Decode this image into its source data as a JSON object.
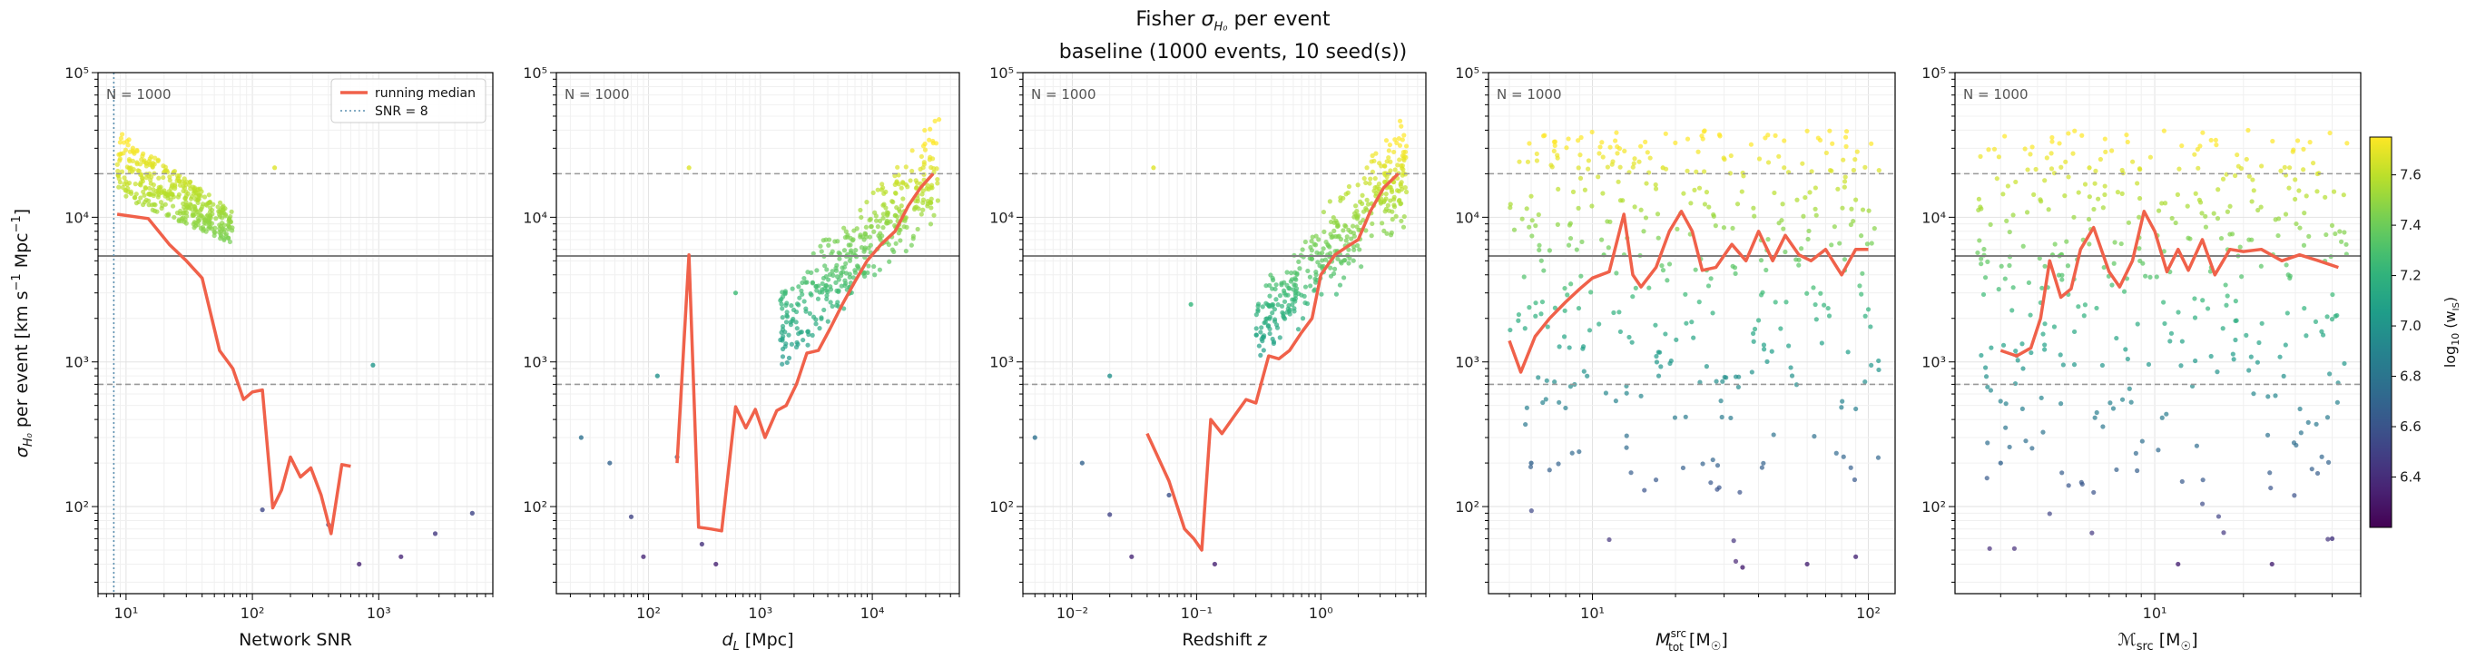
{
  "figure": {
    "title": "Fisher σH₀ per event",
    "title_main": "Fisher ",
    "title_sigma": "σ",
    "title_sub": "H₀",
    "title_tail": " per event",
    "subtitle": "baseline  (1000 events, 10 seed(s))"
  },
  "colors": {
    "median": "#f0614a",
    "snr_line": "#5b8fb0",
    "hline_solid": "#808080",
    "hline_dashed": "#999999",
    "grid": "#e6e6e6"
  },
  "colorbar": {
    "label": "log₁₀ (wᵢₛ)",
    "label_main": "log",
    "label_sub": "10",
    "label_arg": "(w",
    "label_argsub": "IS",
    "label_close": ")",
    "range": [
      6.2,
      7.75
    ],
    "ticks": [
      "6.4",
      "6.6",
      "6.8",
      "7.0",
      "7.2",
      "7.4",
      "7.6"
    ]
  },
  "chart_data": [
    {
      "type": "scatter",
      "id": "snr",
      "xscale": "log",
      "yscale": "log",
      "xlim": [
        6,
        8000
      ],
      "ylim": [
        25,
        100000
      ],
      "xlabel": "Network SNR",
      "ylabel": "σH₀ per event [km s⁻¹ Mpc⁻¹]",
      "ylabel_parts": {
        "sigma": "σ",
        "sub": "H₀",
        "rest": " per event [km s",
        "sup1": "−1",
        "mid": " Mpc",
        "sup2": "−1",
        "end": "]"
      },
      "xticks": [
        {
          "v": 10,
          "label": "10¹"
        },
        {
          "v": 100,
          "label": "10²"
        },
        {
          "v": 1000,
          "label": "10³"
        }
      ],
      "yticks": [
        {
          "v": 100,
          "label": "10²"
        },
        {
          "v": 1000,
          "label": "10³"
        },
        {
          "v": 10000,
          "label": "10⁴"
        },
        {
          "v": 100000,
          "label": "10⁵"
        }
      ],
      "annotation": "N = 1000",
      "legend": {
        "placement": "top-right",
        "entries": [
          "running median",
          "SNR = 8"
        ]
      },
      "snr_threshold": 8,
      "hlines_dashed": [
        700,
        20000
      ],
      "hline_solid": 5400,
      "median": {
        "x": [
          8.5,
          15,
          22,
          30,
          40,
          55,
          70,
          85,
          100,
          120,
          145,
          170,
          200,
          240,
          290,
          350,
          420,
          510,
          600
        ],
        "y": [
          10500,
          9800,
          6500,
          5000,
          3800,
          1200,
          900,
          550,
          620,
          640,
          98,
          130,
          220,
          160,
          185,
          120,
          65,
          195,
          190
        ]
      },
      "cloud": {
        "x": [
          8.5,
          70
        ],
        "y": [
          3000,
          40000
        ],
        "xcorr": -1.2
      },
      "scatter_extra": {
        "x": [
          120,
          700,
          1500,
          2800,
          5500,
          900,
          150,
          400
        ],
        "y": [
          95,
          40,
          45,
          65,
          90,
          950,
          22000,
          75
        ]
      }
    },
    {
      "type": "scatter",
      "id": "dl",
      "xscale": "log",
      "yscale": "log",
      "xlim": [
        15,
        60000
      ],
      "ylim": [
        25,
        100000
      ],
      "xlabel": "dL [Mpc]",
      "xlabel_parts": {
        "main": "d",
        "sub": "L",
        "rest": " [Mpc]"
      },
      "xticks": [
        {
          "v": 100,
          "label": "10²"
        },
        {
          "v": 1000,
          "label": "10³"
        },
        {
          "v": 10000,
          "label": "10⁴"
        }
      ],
      "yticks": [
        {
          "v": 100,
          "label": "10²"
        },
        {
          "v": 1000,
          "label": "10³"
        },
        {
          "v": 10000,
          "label": "10⁴"
        },
        {
          "v": 100000,
          "label": "10⁵"
        }
      ],
      "annotation": "N = 1000",
      "hlines_dashed": [
        700,
        20000
      ],
      "hline_solid": 5400,
      "median": {
        "x": [
          180,
          230,
          280,
          360,
          450,
          600,
          740,
          900,
          1100,
          1400,
          1700,
          2100,
          2600,
          3300,
          4200,
          5400,
          7000,
          9000,
          12000,
          16000,
          21000,
          27000,
          35000
        ],
        "y": [
          200,
          5500,
          72,
          70,
          68,
          490,
          350,
          470,
          300,
          460,
          500,
          700,
          1150,
          1200,
          1700,
          2500,
          3600,
          5000,
          6500,
          8000,
          12000,
          16000,
          20000
        ]
      },
      "cloud": {
        "x": [
          1500,
          40000
        ],
        "y": [
          400,
          40000
        ],
        "xcorr": 1.0
      },
      "scatter_extra": {
        "x": [
          25,
          45,
          70,
          90,
          120,
          180,
          230,
          400,
          600,
          300
        ],
        "y": [
          300,
          200,
          85,
          45,
          800,
          220,
          22000,
          40,
          3000,
          55
        ]
      }
    },
    {
      "type": "scatter",
      "id": "z",
      "xscale": "log",
      "yscale": "log",
      "xlim": [
        0.004,
        7
      ],
      "ylim": [
        25,
        100000
      ],
      "xlabel": "Redshift z",
      "xlabel_parts": {
        "main": "Redshift ",
        "ital": "z"
      },
      "xticks": [
        {
          "v": 0.01,
          "label": "10⁻²"
        },
        {
          "v": 0.1,
          "label": "10⁻¹"
        },
        {
          "v": 1,
          "label": "10⁰"
        }
      ],
      "yticks": [
        {
          "v": 100,
          "label": "10²"
        },
        {
          "v": 1000,
          "label": "10³"
        },
        {
          "v": 10000,
          "label": "10⁴"
        },
        {
          "v": 100000,
          "label": "10⁵"
        }
      ],
      "annotation": "N = 1000",
      "hlines_dashed": [
        700,
        20000
      ],
      "hline_solid": 5400,
      "median": {
        "x": [
          0.04,
          0.06,
          0.08,
          0.095,
          0.11,
          0.13,
          0.16,
          0.2,
          0.25,
          0.3,
          0.38,
          0.46,
          0.56,
          0.7,
          0.85,
          1.0,
          1.3,
          1.6,
          2.0,
          2.5,
          3.2,
          4.2
        ],
        "y": [
          320,
          150,
          70,
          60,
          50,
          400,
          320,
          420,
          550,
          520,
          1100,
          1050,
          1200,
          1600,
          2000,
          4000,
          5500,
          6200,
          7000,
          11000,
          16000,
          20000
        ]
      },
      "cloud": {
        "x": [
          0.3,
          5
        ],
        "y": [
          400,
          40000
        ],
        "xcorr": 1.0
      },
      "scatter_extra": {
        "x": [
          0.005,
          0.012,
          0.02,
          0.03,
          0.045,
          0.06,
          0.02,
          0.14,
          0.09
        ],
        "y": [
          300,
          200,
          88,
          45,
          22000,
          120,
          800,
          40,
          2500
        ]
      }
    },
    {
      "type": "scatter",
      "id": "mtot",
      "xscale": "log",
      "yscale": "log",
      "xlim": [
        4.2,
        125
      ],
      "ylim": [
        25,
        100000
      ],
      "xlabel": "M_tot^src [M☉]",
      "xlabel_parts": {
        "main": "M",
        "sub": "tot",
        "sup": "src",
        "rest": " [M",
        "rest_sub": "☉",
        "end": "]"
      },
      "xticks": [
        {
          "v": 10,
          "label": "10¹"
        },
        {
          "v": 100,
          "label": "10²"
        }
      ],
      "yticks": [
        {
          "v": 100,
          "label": "10²"
        },
        {
          "v": 1000,
          "label": "10³"
        },
        {
          "v": 10000,
          "label": "10⁴"
        },
        {
          "v": 100000,
          "label": "10⁵"
        }
      ],
      "annotation": "N = 1000",
      "hlines_dashed": [
        700,
        20000
      ],
      "hline_solid": 5400,
      "median": {
        "x": [
          5,
          5.5,
          6.2,
          7,
          8,
          9,
          10,
          11.5,
          13,
          14,
          15,
          17,
          19,
          21,
          23,
          25,
          28,
          32,
          36,
          40,
          45,
          50,
          56,
          62,
          70,
          80,
          90,
          100
        ],
        "y": [
          1400,
          850,
          1500,
          2000,
          2600,
          3200,
          3800,
          4200,
          10500,
          4000,
          3300,
          4500,
          8000,
          11000,
          8000,
          4300,
          4500,
          6500,
          5000,
          8000,
          5000,
          7500,
          5500,
          5000,
          6000,
          4000,
          6000,
          6000
        ]
      },
      "cloud": {
        "x": [
          5,
          110
        ],
        "y": [
          30,
          40000
        ],
        "xcorr": 0
      },
      "scatter_extra": {
        "x": [
          6,
          18,
          35,
          60,
          90,
          11
        ],
        "y": [
          200,
          22000,
          38,
          40,
          45,
          5500
        ]
      }
    },
    {
      "type": "scatter",
      "id": "mchirp",
      "xscale": "log",
      "yscale": "log",
      "xlim": [
        2.1,
        50
      ],
      "ylim": [
        25,
        100000
      ],
      "xlabel": "ℳsrc [M☉]",
      "xlabel_parts": {
        "main": "ℳ",
        "sub": "src",
        "rest": " [M",
        "rest_sub": "☉",
        "end": "]"
      },
      "xticks": [
        {
          "v": 10,
          "label": "10¹"
        }
      ],
      "yticks": [
        {
          "v": 100,
          "label": "10²"
        },
        {
          "v": 1000,
          "label": "10³"
        },
        {
          "v": 10000,
          "label": "10⁴"
        },
        {
          "v": 100000,
          "label": "10⁵"
        }
      ],
      "annotation": "N = 1000",
      "hlines_dashed": [
        700,
        20000
      ],
      "hline_solid": 5400,
      "median": {
        "x": [
          3,
          3.4,
          3.8,
          4.1,
          4.4,
          4.8,
          5.2,
          5.6,
          6.2,
          7,
          7.6,
          8.4,
          9.2,
          10,
          11,
          12,
          13,
          14.5,
          16,
          18,
          20,
          23,
          27,
          31,
          36,
          42
        ],
        "y": [
          1200,
          1100,
          1250,
          2000,
          5000,
          2800,
          3200,
          6000,
          8500,
          4200,
          3300,
          5000,
          11000,
          8000,
          4200,
          6000,
          4300,
          7000,
          4000,
          6000,
          5800,
          6000,
          5000,
          5500,
          5000,
          4500
        ]
      },
      "cloud": {
        "x": [
          2.5,
          45
        ],
        "y": [
          30,
          40000
        ],
        "xcorr": 0
      },
      "scatter_extra": {
        "x": [
          3,
          6,
          12,
          25,
          40,
          4.5
        ],
        "y": [
          200,
          22000,
          40,
          40,
          60,
          5500
        ]
      }
    }
  ]
}
